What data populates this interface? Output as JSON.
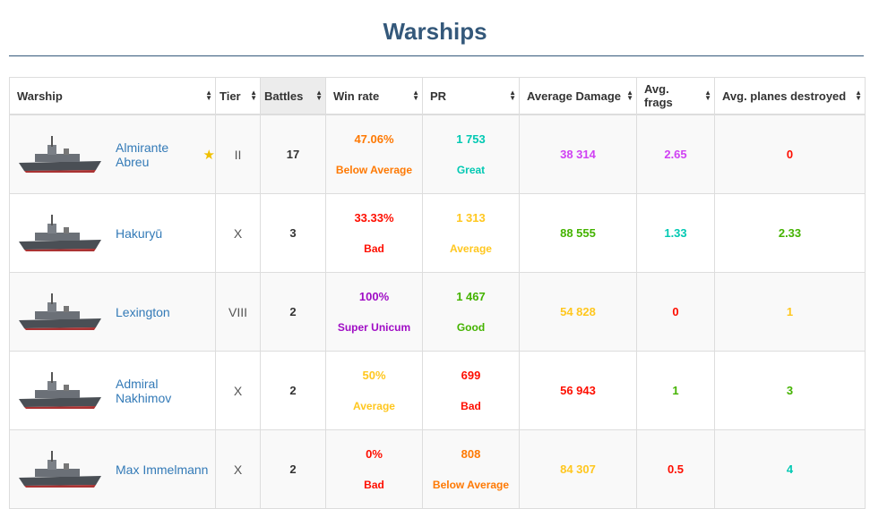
{
  "title": "Warships",
  "colors": {
    "orange": "#fe7903",
    "teal": "#02c9b3",
    "purple": "#d042f3",
    "red": "#fe0e00",
    "yellow": "#ffc71f",
    "green": "#44b300",
    "super": "#a00dc5"
  },
  "columns": [
    "Warship",
    "Tier",
    "Battles",
    "Win rate",
    "PR",
    "Average Damage",
    "Avg. frags",
    "Avg. planes destroyed"
  ],
  "rows": [
    {
      "name": "Almirante Abreu",
      "premium": true,
      "tier": "II",
      "battles": "17",
      "winrate": "47.06%",
      "winrate_label": "Below Average",
      "wr_color": "orange",
      "pr": "1 753",
      "pr_label": "Great",
      "pr_color": "teal",
      "damage": "38 314",
      "dmg_color": "purple",
      "frags": "2.65",
      "frags_color": "purple",
      "planes": "0",
      "planes_color": "red"
    },
    {
      "name": "Hakuryū",
      "premium": false,
      "tier": "X",
      "battles": "3",
      "winrate": "33.33%",
      "winrate_label": "Bad",
      "wr_color": "red",
      "pr": "1 313",
      "pr_label": "Average",
      "pr_color": "yellow",
      "damage": "88 555",
      "dmg_color": "green",
      "frags": "1.33",
      "frags_color": "teal",
      "planes": "2.33",
      "planes_color": "green"
    },
    {
      "name": "Lexington",
      "premium": false,
      "tier": "VIII",
      "battles": "2",
      "winrate": "100%",
      "winrate_label": "Super Unicum",
      "wr_color": "super",
      "pr": "1 467",
      "pr_label": "Good",
      "pr_color": "green",
      "damage": "54 828",
      "dmg_color": "yellow",
      "frags": "0",
      "frags_color": "red",
      "planes": "1",
      "planes_color": "yellow"
    },
    {
      "name": "Admiral Nakhimov",
      "premium": false,
      "tier": "X",
      "battles": "2",
      "winrate": "50%",
      "winrate_label": "Average",
      "wr_color": "yellow",
      "pr": "699",
      "pr_label": "Bad",
      "pr_color": "red",
      "damage": "56 943",
      "dmg_color": "red",
      "frags": "1",
      "frags_color": "green",
      "planes": "3",
      "planes_color": "green"
    },
    {
      "name": "Max Immelmann",
      "premium": false,
      "tier": "X",
      "battles": "2",
      "winrate": "0%",
      "winrate_label": "Bad",
      "wr_color": "red",
      "pr": "808",
      "pr_label": "Below Average",
      "pr_color": "orange",
      "damage": "84 307",
      "dmg_color": "yellow",
      "frags": "0.5",
      "frags_color": "red",
      "planes": "4",
      "planes_color": "teal"
    }
  ]
}
